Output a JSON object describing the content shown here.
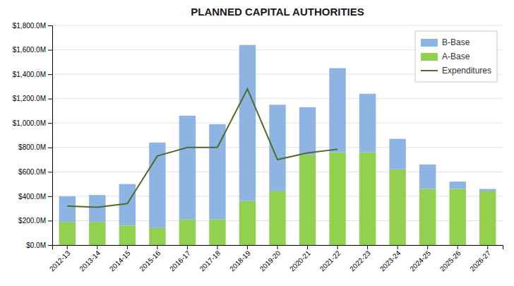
{
  "chart_data": {
    "type": "bar",
    "title": "PLANNED CAPITAL AUTHORITIES",
    "stacked": true,
    "categories": [
      "2012-13",
      "2013-14",
      "2014-15",
      "2015-16",
      "2016-17",
      "2017-18",
      "2018-19",
      "2019-20",
      "2020-21",
      "2021-22",
      "2022-23",
      "2023-24",
      "2024-25",
      "2025-26",
      "2026-27"
    ],
    "series": [
      {
        "name": "A-Base",
        "color": "#92d050",
        "values": [
          190,
          190,
          160,
          140,
          210,
          210,
          360,
          440,
          740,
          760,
          760,
          620,
          460,
          460,
          440
        ]
      },
      {
        "name": "B-Base",
        "color": "#8db4e2",
        "values": [
          210,
          220,
          340,
          700,
          850,
          780,
          1280,
          710,
          390,
          690,
          480,
          250,
          200,
          60,
          20
        ]
      },
      {
        "name": "Expenditures",
        "type": "line",
        "color": "#4e6b29",
        "values": [
          320,
          310,
          340,
          730,
          800,
          800,
          1280,
          700,
          755,
          785,
          null,
          null,
          null,
          null,
          null
        ]
      }
    ],
    "ylim": [
      0,
      1800
    ],
    "yticks": [
      {
        "value": 0,
        "label": "$0.0M"
      },
      {
        "value": 200,
        "label": "$200.0M"
      },
      {
        "value": 400,
        "label": "$400.0M"
      },
      {
        "value": 600,
        "label": "$600.0M"
      },
      {
        "value": 800,
        "label": "$800.0M"
      },
      {
        "value": 1000,
        "label": "$1,000.0M"
      },
      {
        "value": 1200,
        "label": "$1,200.0M"
      },
      {
        "value": 1400,
        "label": "$1,400.0M"
      },
      {
        "value": 1600,
        "label": "$1,600.0M"
      },
      {
        "value": 1800,
        "label": "$1,800.0M"
      }
    ],
    "grid": true,
    "legend": "upper right"
  }
}
